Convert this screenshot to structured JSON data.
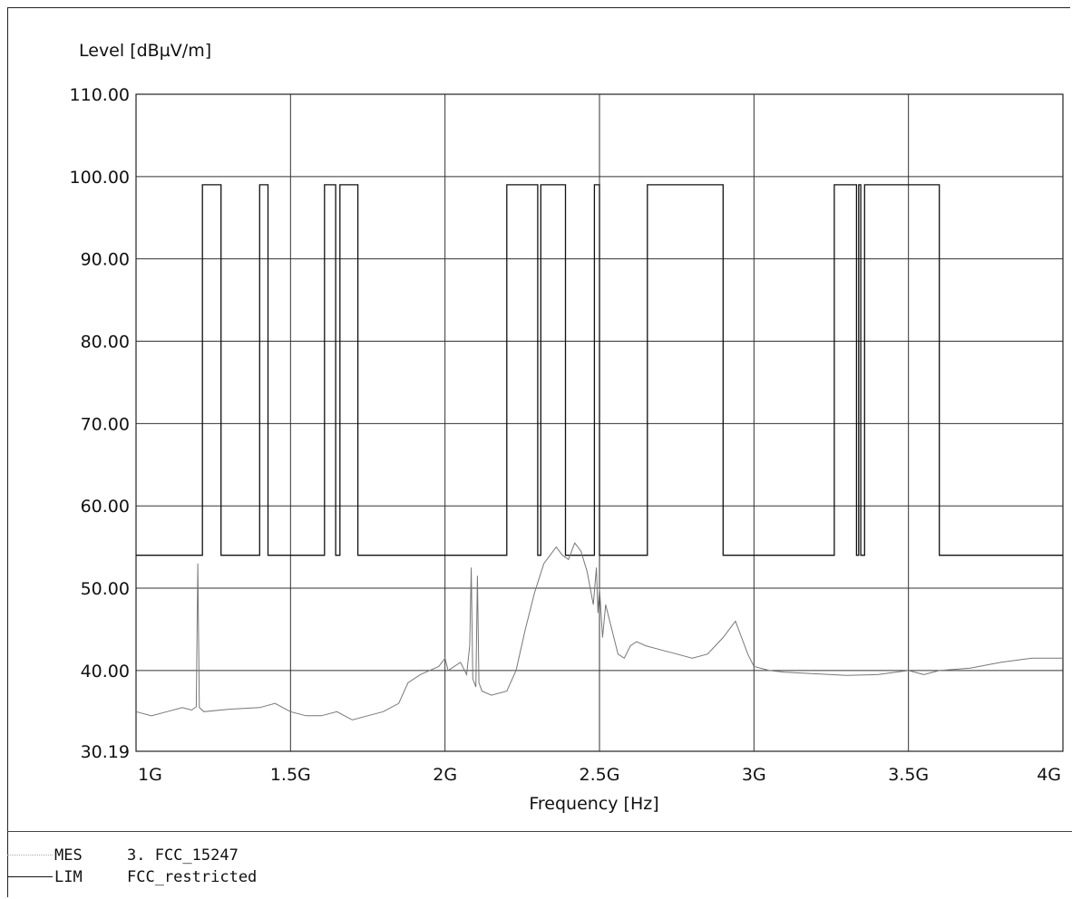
{
  "chart_data": {
    "type": "line",
    "ylabel": "Level [dBµV/m]",
    "xlabel": "Frequency [Hz]",
    "xlim": [
      1000000000,
      4000000000
    ],
    "ylim": [
      30.19,
      110.0
    ],
    "x_ticks": [
      {
        "value": 1000000000,
        "label": "1G"
      },
      {
        "value": 1500000000,
        "label": "1.5G"
      },
      {
        "value": 2000000000,
        "label": "2G"
      },
      {
        "value": 2500000000,
        "label": "2.5G"
      },
      {
        "value": 3000000000,
        "label": "3G"
      },
      {
        "value": 3500000000,
        "label": "3.5G"
      },
      {
        "value": 4000000000,
        "label": "4G"
      }
    ],
    "y_ticks": [
      {
        "value": 110.0,
        "label": "110.00"
      },
      {
        "value": 100.0,
        "label": "100.00"
      },
      {
        "value": 90.0,
        "label": "90.00"
      },
      {
        "value": 80.0,
        "label": "80.00"
      },
      {
        "value": 70.0,
        "label": "70.00"
      },
      {
        "value": 60.0,
        "label": "60.00"
      },
      {
        "value": 50.0,
        "label": "50.00"
      },
      {
        "value": 40.0,
        "label": "40.00"
      },
      {
        "value": 30.19,
        "label": "30.19"
      }
    ],
    "grid": true,
    "legend": "bottom-left",
    "series": [
      {
        "name": "FCC_restricted",
        "kind": "LIM",
        "style": "step",
        "color": "#111111",
        "x": [
          1000000000,
          1215000000,
          1215000000,
          1275000000,
          1275000000,
          1400000000,
          1400000000,
          1427000000,
          1427000000,
          1610000000,
          1610000000,
          1646000000,
          1646000000,
          1660000000,
          1660000000,
          1718000000,
          1718000000,
          2200000000,
          2200000000,
          2300000000,
          2300000000,
          2310000000,
          2310000000,
          2390000000,
          2390000000,
          2483500000,
          2483500000,
          2500000000,
          2500000000,
          2655000000,
          2655000000,
          2900000000,
          2900000000,
          3260000000,
          3260000000,
          3332000000,
          3332000000,
          3339000000,
          3339000000,
          3345800000,
          3345800000,
          3358000000,
          3358000000,
          3600000000,
          3600000000,
          4000000000
        ],
        "y": [
          54,
          54,
          99,
          99,
          54,
          54,
          99,
          99,
          54,
          54,
          99,
          99,
          54,
          54,
          99,
          99,
          54,
          54,
          99,
          99,
          54,
          54,
          99,
          99,
          54,
          54,
          99,
          99,
          54,
          54,
          99,
          99,
          54,
          54,
          99,
          99,
          54,
          54,
          99,
          99,
          54,
          54,
          99,
          99,
          54,
          54
        ]
      },
      {
        "name": "3. FCC_15247",
        "kind": "MES",
        "style": "line",
        "color": "#777777",
        "x": [
          1000000000,
          1050000000,
          1100000000,
          1150000000,
          1180000000,
          1195000000,
          1200000000,
          1205000000,
          1220000000,
          1300000000,
          1400000000,
          1450000000,
          1500000000,
          1550000000,
          1600000000,
          1650000000,
          1700000000,
          1750000000,
          1800000000,
          1850000000,
          1880000000,
          1920000000,
          1950000000,
          1980000000,
          2000000000,
          2010000000,
          2050000000,
          2070000000,
          2080000000,
          2085000000,
          2090000000,
          2100000000,
          2105000000,
          2110000000,
          2120000000,
          2150000000,
          2200000000,
          2230000000,
          2260000000,
          2290000000,
          2320000000,
          2360000000,
          2380000000,
          2400000000,
          2420000000,
          2440000000,
          2460000000,
          2480000000,
          2490000000,
          2495000000,
          2500000000,
          2510000000,
          2520000000,
          2540000000,
          2560000000,
          2580000000,
          2600000000,
          2620000000,
          2650000000,
          2700000000,
          2750000000,
          2800000000,
          2850000000,
          2900000000,
          2940000000,
          2960000000,
          2980000000,
          3000000000,
          3050000000,
          3100000000,
          3200000000,
          3300000000,
          3400000000,
          3500000000,
          3550000000,
          3600000000,
          3700000000,
          3800000000,
          3900000000,
          4000000000
        ],
        "y": [
          35.0,
          34.5,
          35.0,
          35.5,
          35.2,
          35.6,
          53.0,
          35.5,
          35.0,
          35.3,
          35.5,
          36.0,
          35.0,
          34.5,
          34.5,
          35.0,
          34.0,
          34.5,
          35.0,
          36.0,
          38.5,
          39.5,
          40.0,
          40.5,
          41.5,
          40.0,
          41.0,
          39.5,
          43.0,
          52.5,
          39.0,
          38.0,
          51.5,
          38.5,
          37.5,
          37.0,
          37.5,
          40.0,
          45.0,
          49.5,
          53.0,
          55.0,
          54.0,
          53.5,
          55.5,
          54.5,
          52.0,
          48.0,
          52.5,
          47.0,
          50.0,
          44.0,
          48.0,
          45.0,
          42.0,
          41.5,
          43.0,
          43.5,
          43.0,
          42.5,
          42.0,
          41.5,
          42.0,
          44.0,
          46.0,
          44.0,
          42.0,
          40.5,
          40.0,
          39.8,
          39.6,
          39.4,
          39.5,
          40.0,
          39.5,
          40.0,
          40.3,
          41.0,
          41.5,
          41.5
        ]
      }
    ]
  },
  "legend_items": [
    {
      "kind": "MES",
      "label": "3. FCC_15247"
    },
    {
      "kind": "LIM",
      "label": "FCC_restricted"
    }
  ]
}
